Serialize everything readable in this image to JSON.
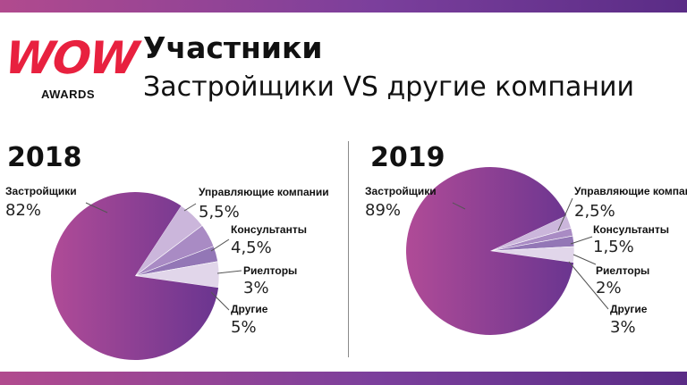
{
  "header": {
    "title": "Участники",
    "subtitle": "Застройщики VS другие компании"
  },
  "logo": {
    "mark": "WOW",
    "caption": "AWARDS"
  },
  "colors": {
    "bar_start": "#b14a8e",
    "bar_end": "#5a2c86",
    "logo_red": "#e8213f",
    "slices": [
      "#8a3f9b",
      "#cbb6db",
      "#a98bc4",
      "#9377b6",
      "#e1d6ea"
    ]
  },
  "chart_data": [
    {
      "type": "pie",
      "title": "2018",
      "categories": [
        "Застройщики",
        "Управляющие компании",
        "Консультанты",
        "Риелторы",
        "Другие"
      ],
      "values": [
        82,
        5.5,
        4.5,
        3,
        5
      ],
      "value_labels": [
        "82%",
        "5,5%",
        "4,5%",
        "3%",
        "5%"
      ]
    },
    {
      "type": "pie",
      "title": "2019",
      "categories": [
        "Застройщики",
        "Управляющие компании",
        "Консультанты",
        "Риелторы",
        "Другие"
      ],
      "values": [
        89,
        2.5,
        1.5,
        2,
        3
      ],
      "value_labels": [
        "89%",
        "2,5%",
        "1,5%",
        "2%",
        "3%"
      ]
    }
  ]
}
